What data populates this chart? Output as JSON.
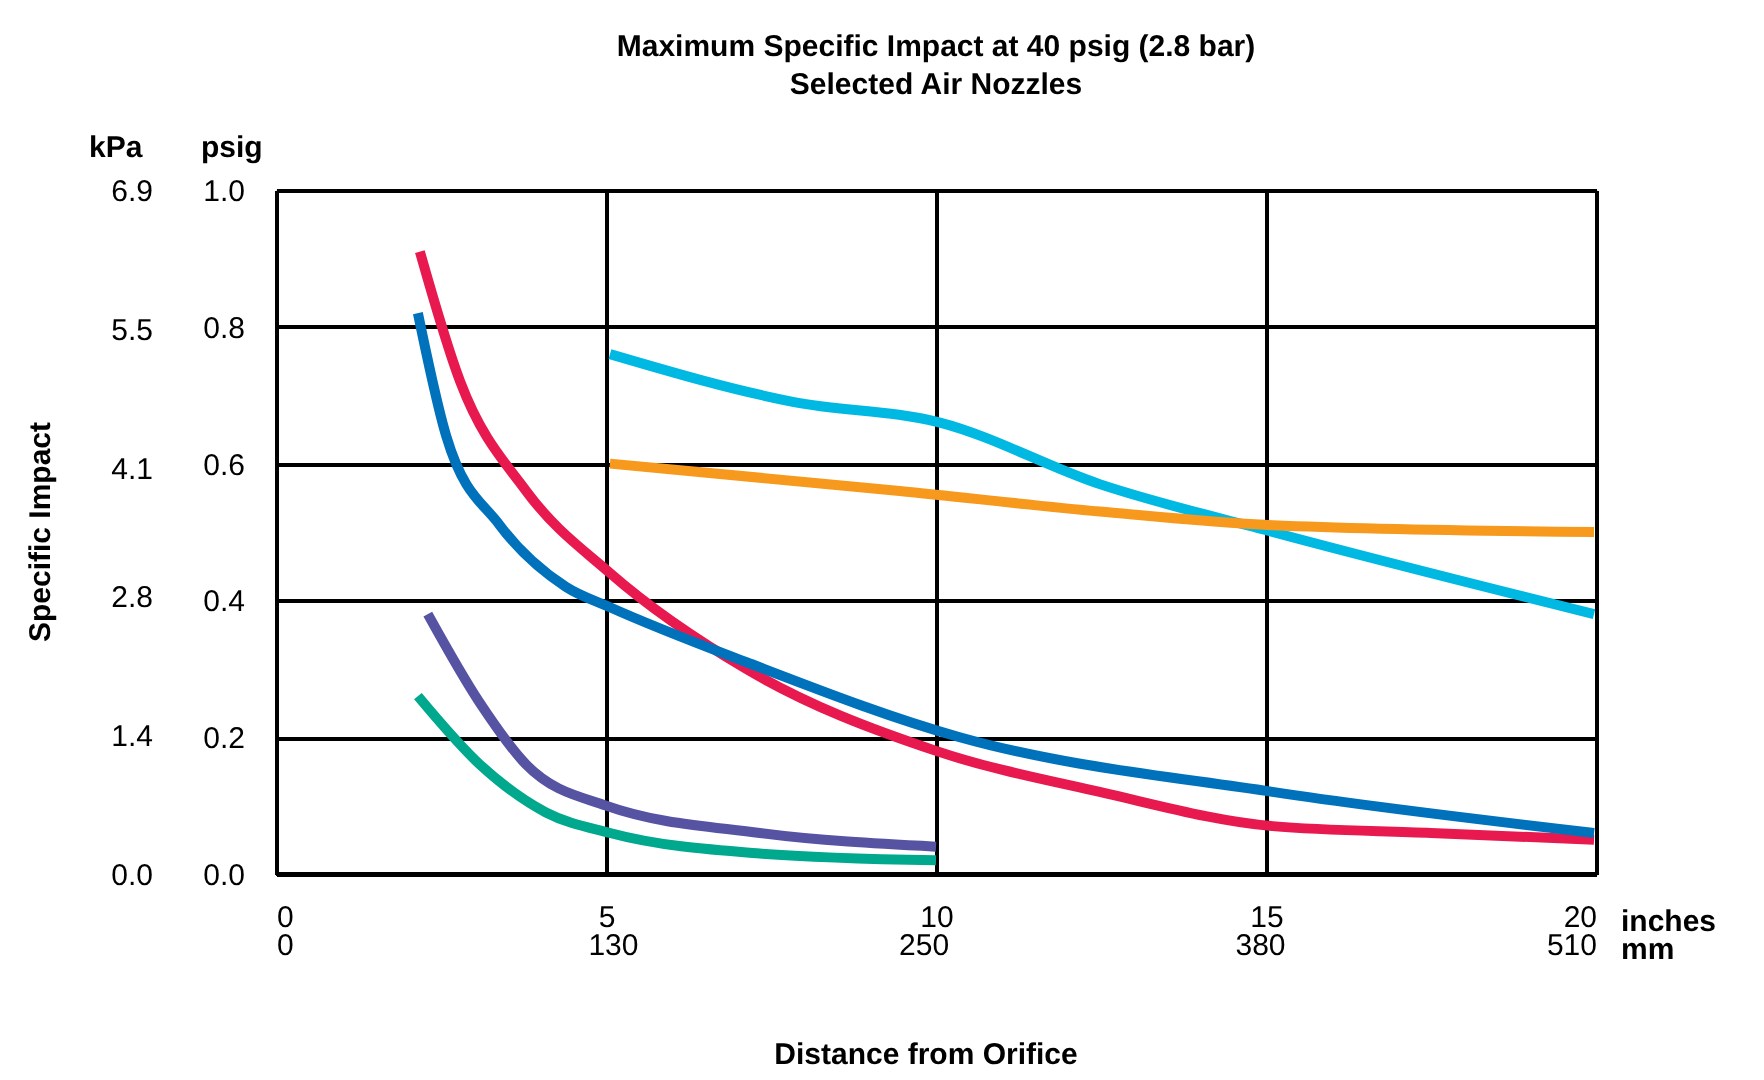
{
  "chart_data": {
    "type": "line",
    "title": "Maximum Specific Impact at 40 psig (2.8 bar)",
    "subtitle": "Selected Air Nozzles",
    "xlabel": "inches",
    "x2label": "mm",
    "ylabel": "psig",
    "y2label": "kPa",
    "annotations": [
      "Specific Impact",
      "Distance from Orifice"
    ],
    "xlim": [
      0,
      20
    ],
    "xticks": [
      0,
      5,
      10,
      15,
      20
    ],
    "x2lim": [
      0,
      510
    ],
    "x2ticks": [
      0,
      130,
      250,
      380,
      510
    ],
    "ylim": [
      0,
      1
    ],
    "yticks": [
      {
        "value": 0,
        "label": "0.0"
      },
      0.2,
      0.4,
      0.6,
      0.8,
      {
        "value": 1,
        "label": "1.0"
      }
    ],
    "y2lim": [
      0,
      6.9
    ],
    "y2ticks": [
      {
        "value": 0,
        "label": "0.0"
      },
      1.4,
      2.8,
      4.1,
      5.5,
      6.9
    ],
    "grid": true,
    "legend": false,
    "line_style": "solid",
    "marker": "none",
    "series": [
      {
        "color": "#e8194f",
        "x": [
          2.18,
          2.79,
          3.79,
          5.06,
          7.12,
          10.0,
          12.48,
          15.1,
          17.5,
          19.97
        ],
        "values": [
          0.91,
          0.72,
          0.56,
          0.44,
          0.3,
          0.18,
          0.12,
          0.07,
          0.06,
          0.05
        ]
      },
      {
        "color": "#0072bc",
        "x": [
          2.15,
          2.58,
          3.39,
          4.39,
          5.06,
          7.12,
          10.36,
          15.1,
          19.97
        ],
        "values": [
          0.82,
          0.64,
          0.51,
          0.42,
          0.39,
          0.31,
          0.2,
          0.12,
          0.06
        ]
      },
      {
        "color": "#00b9e3",
        "x": [
          5.06,
          7.85,
          10.06,
          12.48,
          15.1,
          19.97
        ],
        "values": [
          0.76,
          0.69,
          0.66,
          0.57,
          0.5,
          0.38
        ]
      },
      {
        "color": "#f7991c",
        "x": [
          5.06,
          9.45,
          12.48,
          15.1,
          19.97
        ],
        "values": [
          0.6,
          0.56,
          0.53,
          0.51,
          0.5
        ]
      },
      {
        "color": "#5653a3",
        "x": [
          2.3,
          3.09,
          3.79,
          5.0,
          7.33,
          10.0
        ],
        "values": [
          0.38,
          0.25,
          0.16,
          0.1,
          0.06,
          0.04
        ]
      },
      {
        "color": "#00a88e",
        "x": [
          2.15,
          3.09,
          4.09,
          5.06,
          7.33,
          10.0
        ],
        "values": [
          0.26,
          0.16,
          0.09,
          0.06,
          0.03,
          0.02
        ]
      }
    ]
  }
}
